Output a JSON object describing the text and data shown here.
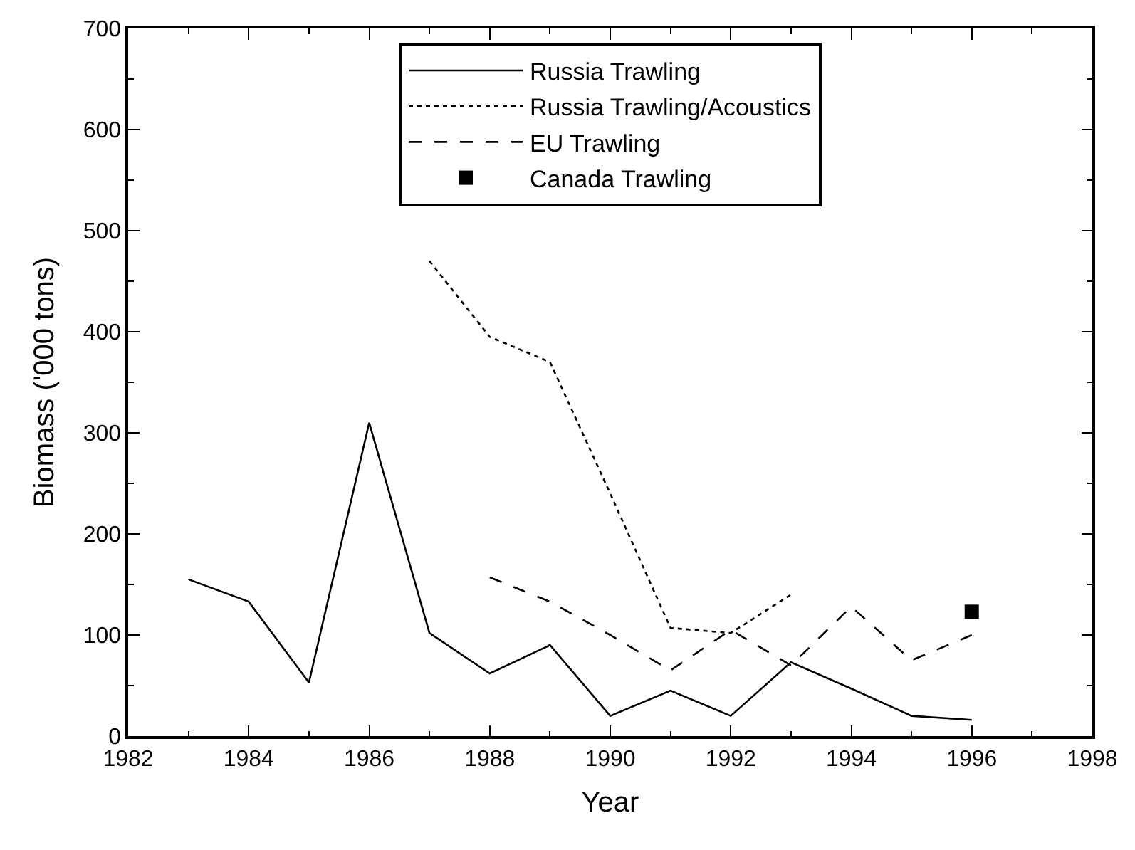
{
  "chart_data": {
    "type": "line",
    "xlabel": "Year",
    "ylabel": "Biomass ('000 tons)",
    "xlim": [
      1982,
      1998
    ],
    "xticks": [
      1982,
      1984,
      1986,
      1988,
      1990,
      1992,
      1994,
      1996,
      1998
    ],
    "ylim": [
      0,
      700
    ],
    "yticks": [
      0,
      100,
      200,
      300,
      400,
      500,
      600,
      700
    ],
    "legend": "top",
    "series": [
      {
        "name": "Russia Trawling",
        "color": "#000000",
        "line_style": "solid",
        "x": [
          1983,
          1984,
          1985,
          1986,
          1987,
          1988,
          1989,
          1990,
          1991,
          1992,
          1993,
          1994,
          1995,
          1996
        ],
        "values": [
          155,
          133,
          53,
          310,
          102,
          62,
          90,
          20,
          45,
          20,
          73,
          47,
          20,
          16
        ]
      },
      {
        "name": "Russia Trawling/Acoustics",
        "color": "#000000",
        "line_style": "dotted",
        "x": [
          1987,
          1988,
          1989,
          1990,
          1991,
          1992,
          1993
        ],
        "values": [
          470,
          395,
          370,
          240,
          107,
          102,
          140
        ]
      },
      {
        "name": "EU Trawling",
        "color": "#000000",
        "line_style": "dashed",
        "x": [
          1988,
          1989,
          1990,
          1991,
          1992,
          1993,
          1994,
          1995,
          1996
        ],
        "values": [
          157,
          133,
          100,
          65,
          105,
          70,
          128,
          75,
          100
        ]
      },
      {
        "name": "Canada Trawling",
        "color": "#000000",
        "type": "scatter",
        "marker": "square",
        "x": [
          1996
        ],
        "values": [
          123
        ]
      }
    ]
  }
}
